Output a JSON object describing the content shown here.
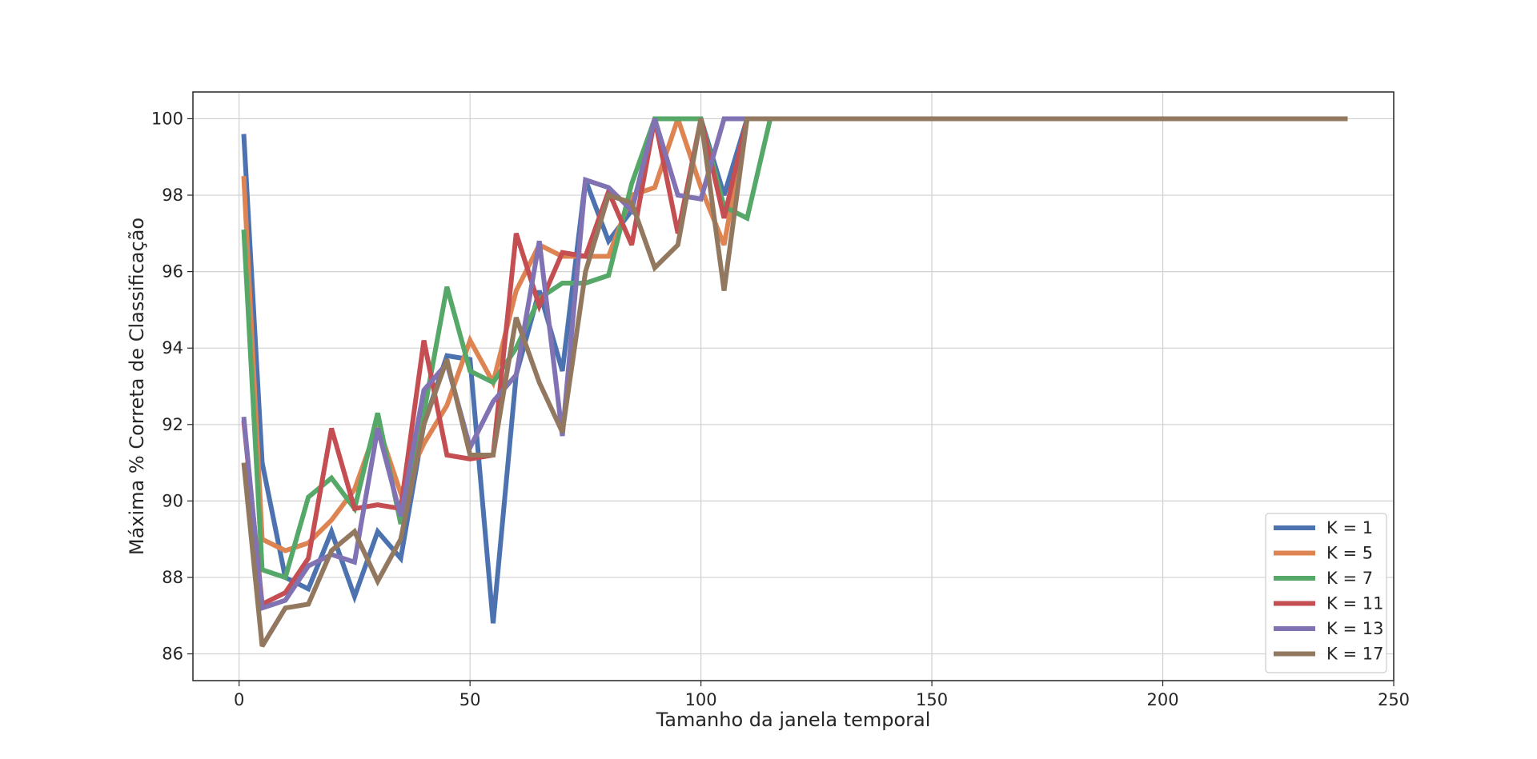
{
  "chart_data": {
    "type": "line",
    "title": "",
    "xlabel": "Tamanho da janela temporal",
    "ylabel": "Máxima % Correta de Classificação",
    "xlim": [
      -10,
      250
    ],
    "ylim": [
      85.3,
      100.7
    ],
    "xticks": [
      0,
      50,
      100,
      150,
      200,
      250
    ],
    "yticks": [
      86,
      88,
      90,
      92,
      94,
      96,
      98,
      100
    ],
    "grid": true,
    "legend_position": "lower-right",
    "series": [
      {
        "name": "K = 1",
        "color": "#4c72b0",
        "x": [
          1,
          5,
          10,
          15,
          20,
          25,
          30,
          35,
          40,
          45,
          50,
          55,
          60,
          65,
          70,
          75,
          80,
          85,
          90,
          95,
          100,
          105,
          110,
          240
        ],
        "y": [
          99.6,
          91.0,
          88.0,
          87.7,
          89.2,
          87.5,
          89.2,
          88.5,
          92.0,
          93.8,
          93.7,
          86.8,
          93.3,
          95.5,
          93.4,
          98.4,
          96.8,
          97.6,
          100,
          100,
          100,
          98.0,
          100,
          100
        ]
      },
      {
        "name": "K = 5",
        "color": "#dd8452",
        "x": [
          1,
          5,
          10,
          15,
          20,
          25,
          30,
          35,
          40,
          45,
          50,
          55,
          60,
          65,
          70,
          75,
          80,
          85,
          90,
          95,
          100,
          105,
          110,
          240
        ],
        "y": [
          98.5,
          89.0,
          88.7,
          88.9,
          89.5,
          90.3,
          92.0,
          90.2,
          91.5,
          92.5,
          94.2,
          93.1,
          95.5,
          96.7,
          96.4,
          96.4,
          96.4,
          98.0,
          98.2,
          100,
          98.2,
          96.7,
          100,
          100
        ]
      },
      {
        "name": "K = 7",
        "color": "#55a868",
        "x": [
          1,
          5,
          10,
          15,
          20,
          25,
          30,
          35,
          40,
          45,
          50,
          55,
          60,
          65,
          70,
          75,
          80,
          85,
          90,
          95,
          100,
          105,
          110,
          115,
          240
        ],
        "y": [
          97.1,
          88.2,
          88.0,
          90.1,
          90.6,
          89.8,
          92.3,
          89.4,
          92.3,
          95.6,
          93.4,
          93.1,
          94.0,
          95.3,
          95.7,
          95.7,
          95.9,
          98.3,
          100,
          100,
          100,
          97.7,
          97.4,
          100,
          100
        ]
      },
      {
        "name": "K = 11",
        "color": "#c44e52",
        "x": [
          1,
          5,
          10,
          15,
          20,
          25,
          30,
          35,
          40,
          45,
          50,
          55,
          60,
          65,
          70,
          75,
          80,
          85,
          90,
          95,
          100,
          105,
          110,
          240
        ],
        "y": [
          92.1,
          87.3,
          87.6,
          88.5,
          91.9,
          89.8,
          89.9,
          89.8,
          94.2,
          91.2,
          91.1,
          91.2,
          97.0,
          95.1,
          96.5,
          96.4,
          98.1,
          96.7,
          100,
          97.0,
          100,
          97.4,
          100,
          100
        ]
      },
      {
        "name": "K = 13",
        "color": "#8172b3",
        "x": [
          1,
          5,
          10,
          15,
          20,
          25,
          30,
          35,
          40,
          45,
          50,
          55,
          60,
          65,
          70,
          75,
          80,
          85,
          90,
          95,
          100,
          105,
          110,
          240
        ],
        "y": [
          92.2,
          87.2,
          87.4,
          88.3,
          88.6,
          88.4,
          91.9,
          89.6,
          92.9,
          93.6,
          91.4,
          92.6,
          93.3,
          96.8,
          91.7,
          98.4,
          98.2,
          97.6,
          100,
          98.0,
          97.9,
          100,
          100,
          100
        ]
      },
      {
        "name": "K = 17",
        "color": "#937860",
        "x": [
          1,
          5,
          10,
          15,
          20,
          25,
          30,
          35,
          40,
          45,
          50,
          55,
          60,
          65,
          70,
          75,
          80,
          85,
          90,
          95,
          100,
          105,
          110,
          240
        ],
        "y": [
          91.0,
          86.2,
          87.2,
          87.3,
          88.7,
          89.2,
          87.9,
          89.0,
          92.0,
          93.7,
          91.2,
          91.2,
          94.8,
          93.1,
          91.8,
          96.0,
          98.0,
          97.8,
          96.1,
          96.7,
          100,
          95.5,
          100,
          100
        ]
      }
    ]
  }
}
